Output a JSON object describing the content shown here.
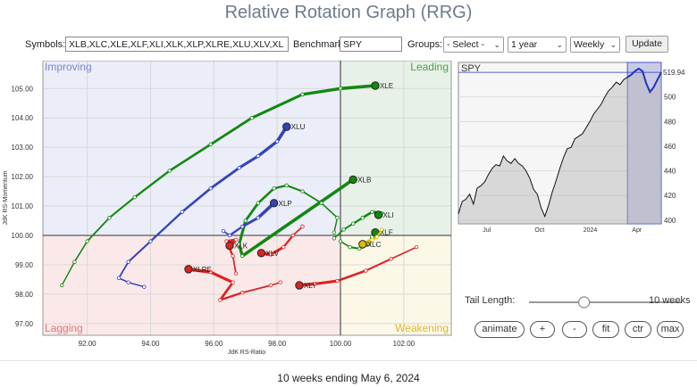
{
  "title": "Relative Rotation Graph (RRG)",
  "controls": {
    "symbols_label": "Symbols:",
    "symbols_value": "XLB,XLC,XLE,XLF,XLI,XLK,XLP,XLRE,XLU,XLV,XL",
    "benchmark_label": "Benchmark:",
    "benchmark_value": "SPY",
    "groups_label": "Groups:",
    "groups_value": "- Select -",
    "period_value": "1 year",
    "frequency_value": "Weekly",
    "update_label": "Update"
  },
  "chart_data": [
    {
      "type": "scatter",
      "subtype": "rrg",
      "xlabel": "JdK RS-Ratio",
      "ylabel": "JdK RS-Momentum",
      "xlim": [
        90.6,
        103.5
      ],
      "ylim": [
        96.6,
        105.95
      ],
      "xticks": [
        "92.00",
        "94.00",
        "96.00",
        "98.00",
        "100.00",
        "102.00"
      ],
      "yticks": [
        "97.00",
        "98.00",
        "99.00",
        "100.00",
        "101.00",
        "102.00",
        "103.00",
        "104.00",
        "105.00"
      ],
      "quadrants": {
        "top_left": "Improving",
        "top_right": "Leading",
        "bottom_left": "Lagging",
        "bottom_right": "Weakening"
      },
      "quadrant_colors": {
        "improving": "#ebedf8",
        "leading": "#e7f1e7",
        "lagging": "#fbe9e9",
        "weakening": "#fbf8e8"
      },
      "series": [
        {
          "name": "XLE",
          "color": "#118811",
          "points": [
            [
              91.2,
              98.3
            ],
            [
              91.6,
              99.1
            ],
            [
              92.0,
              99.8
            ],
            [
              92.7,
              100.6
            ],
            [
              93.5,
              101.3
            ],
            [
              94.6,
              102.2
            ],
            [
              95.9,
              103.1
            ],
            [
              97.2,
              104.0
            ],
            [
              98.8,
              104.8
            ],
            [
              100.0,
              105.0
            ],
            [
              101.1,
              105.1
            ]
          ]
        },
        {
          "name": "XLU",
          "color": "#3344bb",
          "points": [
            [
              93.8,
              98.25
            ],
            [
              93.3,
              98.4
            ],
            [
              93.0,
              98.55
            ],
            [
              93.3,
              99.1
            ],
            [
              94.0,
              99.8
            ],
            [
              95.0,
              100.8
            ],
            [
              95.9,
              101.6
            ],
            [
              96.8,
              102.3
            ],
            [
              97.4,
              102.7
            ],
            [
              98.0,
              103.2
            ],
            [
              98.3,
              103.7
            ]
          ]
        },
        {
          "name": "XLB",
          "color": "#118811",
          "points": [
            [
              99.8,
              100.1
            ],
            [
              99.9,
              100.6
            ],
            [
              99.4,
              101.1
            ],
            [
              98.8,
              101.5
            ],
            [
              98.3,
              101.7
            ],
            [
              97.9,
              101.6
            ],
            [
              97.4,
              101.1
            ],
            [
              97.0,
              100.5
            ],
            [
              96.8,
              99.7
            ],
            [
              96.9,
              99.3
            ],
            [
              100.4,
              101.9
            ]
          ]
        },
        {
          "name": "XLI",
          "color": "#118811",
          "points": [
            [
              99.8,
              99.9
            ],
            [
              100.1,
              100.2
            ],
            [
              100.4,
              100.4
            ],
            [
              100.7,
              100.6
            ],
            [
              101.0,
              100.8
            ],
            [
              101.3,
              100.75
            ],
            [
              101.2,
              100.7
            ]
          ]
        },
        {
          "name": "XLF",
          "color": "#118811",
          "points": [
            [
              100.0,
              99.8
            ],
            [
              100.3,
              99.6
            ],
            [
              100.6,
              99.55
            ],
            [
              100.9,
              99.7
            ],
            [
              101.0,
              99.95
            ],
            [
              101.1,
              100.1
            ]
          ]
        },
        {
          "name": "XLP",
          "color": "#3344bb",
          "points": [
            [
              96.3,
              100.15
            ],
            [
              96.5,
              100.0
            ],
            [
              96.9,
              100.3
            ],
            [
              97.4,
              100.6
            ],
            [
              97.9,
              101.1
            ]
          ]
        },
        {
          "name": "XLC",
          "color": "#ddbb00",
          "points": [
            [
              101.3,
              100.2
            ],
            [
              101.15,
              99.95
            ],
            [
              101.0,
              99.85
            ],
            [
              100.7,
              99.7
            ]
          ]
        },
        {
          "name": "XLK",
          "color": "#dd2222",
          "points": [
            [
              96.7,
              98.7
            ],
            [
              96.6,
              99.3
            ],
            [
              96.4,
              99.8
            ],
            [
              96.7,
              99.85
            ],
            [
              96.5,
              99.65
            ]
          ]
        },
        {
          "name": "XLV",
          "color": "#dd2222",
          "points": [
            [
              98.8,
              100.3
            ],
            [
              98.5,
              100.0
            ],
            [
              98.2,
              99.6
            ],
            [
              97.8,
              99.35
            ],
            [
              97.5,
              99.4
            ]
          ]
        },
        {
          "name": "XLRE",
          "color": "#dd2222",
          "points": [
            [
              98.1,
              98.4
            ],
            [
              97.8,
              98.3
            ],
            [
              96.9,
              98.05
            ],
            [
              96.2,
              97.8
            ],
            [
              96.6,
              98.4
            ],
            [
              95.9,
              98.75
            ],
            [
              95.2,
              98.85
            ]
          ]
        },
        {
          "name": "XLY",
          "color": "#dd2222",
          "points": [
            [
              102.4,
              99.6
            ],
            [
              101.6,
              99.2
            ],
            [
              100.8,
              98.8
            ],
            [
              99.9,
              98.45
            ],
            [
              99.2,
              98.35
            ],
            [
              98.7,
              98.3
            ]
          ]
        }
      ]
    },
    {
      "type": "area",
      "title": "SPY",
      "value_label": "519.94",
      "x_labels": [
        "Jul",
        "Oct",
        "2024",
        "Apr"
      ],
      "y_ticks": [
        "400",
        "420",
        "440",
        "460",
        "480",
        "500"
      ],
      "ylim": [
        397,
        528
      ],
      "values": [
        405,
        415,
        417,
        421,
        413,
        426,
        428,
        431,
        437,
        442,
        445,
        444,
        452,
        448,
        446,
        450,
        446,
        444,
        440,
        434,
        425,
        421,
        410,
        403,
        412,
        423,
        432,
        442,
        451,
        458,
        459,
        466,
        468,
        470,
        475,
        480,
        486,
        490,
        494,
        500,
        505,
        508,
        512,
        510,
        514,
        516,
        518,
        521,
        523,
        521,
        511,
        504,
        508,
        514,
        519.94
      ],
      "highlight_window": "10 weeks",
      "highlight_color": "#c8cbe8"
    }
  ],
  "tail": {
    "label": "Tail Length:",
    "value_text": "10 weeks",
    "fraction": 0.36
  },
  "buttons": {
    "animate": "animate",
    "plus": "+",
    "minus": "-",
    "fit": "fit",
    "ctr": "ctr",
    "max": "max"
  },
  "footer": "10 weeks ending May 6, 2024"
}
